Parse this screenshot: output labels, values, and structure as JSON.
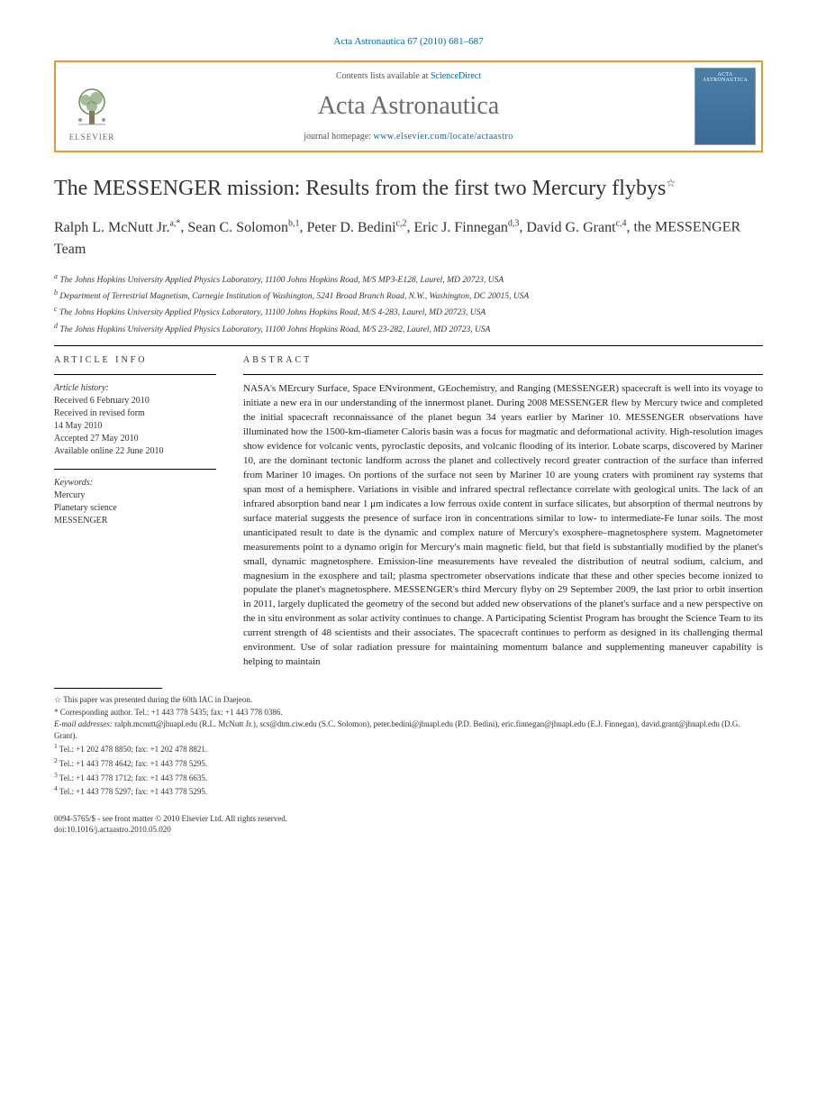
{
  "header": {
    "citation": "Acta Astronautica 67 (2010) 681–687",
    "contents_prefix": "Contents lists available at ",
    "contents_link": "ScienceDirect",
    "journal_name": "Acta Astronautica",
    "homepage_prefix": "journal homepage: ",
    "homepage_url": "www.elsevier.com/locate/actaastro",
    "publisher": "ELSEVIER",
    "cover_title": "ACTA ASTRONAUTICA"
  },
  "title": "The MESSENGER mission: Results from the first two Mercury flybys",
  "title_note_marker": "☆",
  "authors_html": [
    {
      "name": "Ralph L. McNutt Jr.",
      "sup": "a,*"
    },
    {
      "name": "Sean C. Solomon",
      "sup": "b,1"
    },
    {
      "name": "Peter D. Bedini",
      "sup": "c,2"
    },
    {
      "name": "Eric J. Finnegan",
      "sup": "d,3"
    },
    {
      "name": "David G. Grant",
      "sup": "c,4"
    },
    {
      "name": "the MESSENGER Team",
      "sup": ""
    }
  ],
  "affiliations": [
    "a The Johns Hopkins University Applied Physics Laboratory, 11100 Johns Hopkins Road, M/S MP3-E128, Laurel, MD 20723, USA",
    "b Department of Terrestrial Magnetism, Carnegie Institution of Washington, 5241 Broad Branch Road, N.W., Washington, DC 20015, USA",
    "c The Johns Hopkins University Applied Physics Laboratory, 11100 Johns Hopkins Road, M/S 4-283, Laurel, MD 20723, USA",
    "d The Johns Hopkins University Applied Physics Laboratory, 11100 Johns Hopkins Road, M/S 23-282, Laurel, MD 20723, USA"
  ],
  "article_info": {
    "heading": "ARTICLE INFO",
    "history_label": "Article history:",
    "history": [
      "Received 6 February 2010",
      "Received in revised form",
      "14 May 2010",
      "Accepted 27 May 2010",
      "Available online 22 June 2010"
    ],
    "keywords_label": "Keywords:",
    "keywords": [
      "Mercury",
      "Planetary science",
      "MESSENGER"
    ]
  },
  "abstract": {
    "heading": "ABSTRACT",
    "text": "NASA's MErcury Surface, Space ENvironment, GEochemistry, and Ranging (MESSENGER) spacecraft is well into its voyage to initiate a new era in our understanding of the innermost planet. During 2008 MESSENGER flew by Mercury twice and completed the initial spacecraft reconnaissance of the planet begun 34 years earlier by Mariner 10. MESSENGER observations have illuminated how the 1500-km-diameter Caloris basin was a focus for magmatic and deformational activity. High-resolution images show evidence for volcanic vents, pyroclastic deposits, and volcanic flooding of its interior. Lobate scarps, discovered by Mariner 10, are the dominant tectonic landform across the planet and collectively record greater contraction of the surface than inferred from Mariner 10 images. On portions of the surface not seen by Mariner 10 are young craters with prominent ray systems that span most of a hemisphere. Variations in visible and infrared spectral reflectance correlate with geological units. The lack of an infrared absorption band near 1 μm indicates a low ferrous oxide content in surface silicates, but absorption of thermal neutrons by surface material suggests the presence of surface iron in concentrations similar to low- to intermediate-Fe lunar soils. The most unanticipated result to date is the dynamic and complex nature of Mercury's exosphere–magnetosphere system. Magnetometer measurements point to a dynamo origin for Mercury's main magnetic field, but that field is substantially modified by the planet's small, dynamic magnetosphere. Emission-line measurements have revealed the distribution of neutral sodium, calcium, and magnesium in the exosphere and tail; plasma spectrometer observations indicate that these and other species become ionized to populate the planet's magnetosphere. MESSENGER's third Mercury flyby on 29 September 2009, the last prior to orbit insertion in 2011, largely duplicated the geometry of the second but added new observations of the planet's surface and a new perspective on the in situ environment as solar activity continues to change. A Participating Scientist Program has brought the Science Team to its current strength of 48 scientists and their associates. The spacecraft continues to perform as designed in its challenging thermal environment. Use of solar radiation pressure for maintaining momentum balance and supplementing maneuver capability is helping to maintain"
  },
  "footnotes": {
    "note": "☆ This paper was presented during the 60th IAC in Daejeon.",
    "corresponding": "* Corresponding author. Tel.: +1 443 778 5435; fax: +1 443 778 0386.",
    "email_label": "E-mail addresses:",
    "emails": "ralph.mcnutt@jhuapl.edu (R.L. McNutt Jr.), scs@dtm.ciw.edu (S.C. Solomon), peter.bedini@jhuapl.edu (P.D. Bedini), eric.finnegan@jhuapl.edu (E.J. Finnegan), david.grant@jhuapl.edu (D.G. Grant).",
    "tels": [
      "1 Tel.: +1 202 478 8850; fax: +1 202 478 8821.",
      "2 Tel.: +1 443 778 4642; fax: +1 443 778 5295.",
      "3 Tel.: +1 443 778 1712; fax: +1 443 778 6635.",
      "4 Tel.: +1 443 778 5297; fax: +1 443 778 5295."
    ]
  },
  "bottom": {
    "line1": "0094-5765/$ - see front matter © 2010 Elsevier Ltd. All rights reserved.",
    "line2": "doi:10.1016/j.actaastro.2010.05.020"
  },
  "colors": {
    "link": "#0066a8",
    "border": "#e39b3a",
    "journal_gray": "#6b6b6b",
    "cover_bg": "#4a7fa8"
  }
}
